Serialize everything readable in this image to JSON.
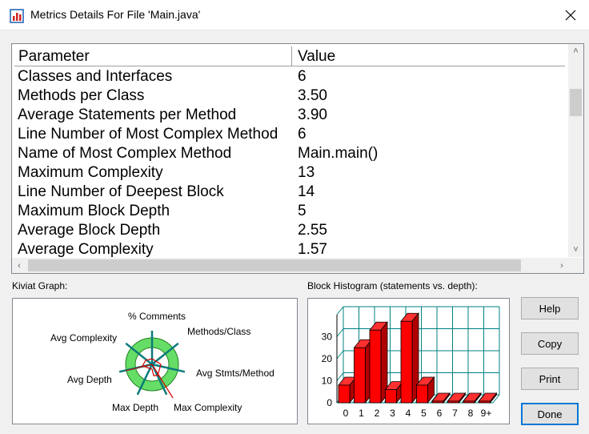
{
  "window": {
    "title": "Metrics Details For File 'Main.java'"
  },
  "table": {
    "headers": {
      "parameter": "Parameter",
      "value": "Value"
    },
    "rows": [
      {
        "parameter": "Classes and Interfaces",
        "value": "6"
      },
      {
        "parameter": "Methods per Class",
        "value": "3.50"
      },
      {
        "parameter": "Average Statements per Method",
        "value": "3.90"
      },
      {
        "parameter": "Line Number of Most Complex Method",
        "value": "6"
      },
      {
        "parameter": "Name of Most Complex Method",
        "value": "Main.main()"
      },
      {
        "parameter": "Maximum Complexity",
        "value": "13"
      },
      {
        "parameter": "Line Number of Deepest Block",
        "value": "14"
      },
      {
        "parameter": "Maximum Block Depth",
        "value": "5"
      },
      {
        "parameter": "Average Block Depth",
        "value": "2.55"
      },
      {
        "parameter": "Average Complexity",
        "value": "1.57"
      }
    ]
  },
  "kiviat": {
    "label": "Kiviat Graph:",
    "axes": [
      "% Comments",
      "Methods/Class",
      "Avg Stmts/Method",
      "Max Complexity",
      "Max Depth",
      "Avg Depth",
      "Avg Complexity"
    ]
  },
  "histogram": {
    "label": "Block Histogram (statements vs. depth):"
  },
  "chart_data": {
    "type": "bar",
    "title": "Block Histogram (statements vs. depth):",
    "categories": [
      "0",
      "1",
      "2",
      "3",
      "4",
      "5",
      "6",
      "7",
      "8",
      "9+"
    ],
    "values": [
      8,
      25,
      33,
      6,
      37,
      8,
      0,
      0,
      0,
      0
    ],
    "yticks": [
      0,
      10,
      20,
      30
    ],
    "ylim": [
      0,
      40
    ],
    "bar_color": "#ff0000",
    "grid_color": "#008080"
  },
  "buttons": {
    "help": "Help",
    "copy": "Copy",
    "print": "Print",
    "done": "Done"
  },
  "colors": {
    "accent": "#0078d7",
    "kiviat_fill": "#66dd66",
    "bars": "#ff0000"
  }
}
